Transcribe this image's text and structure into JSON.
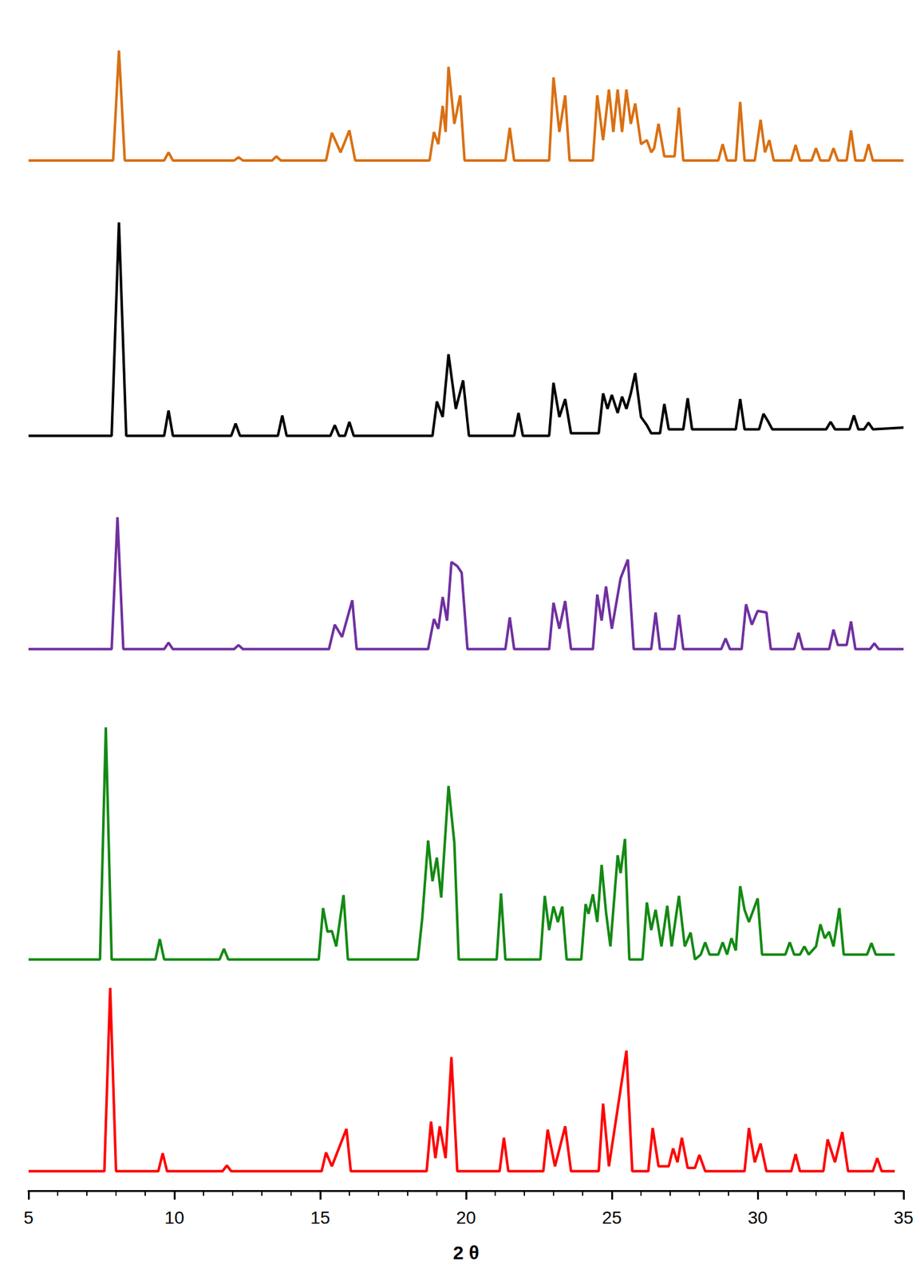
{
  "chart_data": {
    "type": "line",
    "xlabel": "2 θ",
    "xlim": [
      5,
      35
    ],
    "xticks": [
      5,
      10,
      15,
      20,
      25,
      30,
      35
    ],
    "ylim": [
      0,
      1420
    ],
    "tick_labels": "x",
    "grid": false,
    "series": [
      {
        "color": "#d97012",
        "x": [
          5,
          7.9,
          8.1,
          8.3,
          9.65,
          9.8,
          9.95,
          12.05,
          12.2,
          12.35,
          13.35,
          13.5,
          13.65,
          15.2,
          15.4,
          15.7,
          16.0,
          16.2,
          18.75,
          18.9,
          19.05,
          19.2,
          19.3,
          19.4,
          19.6,
          19.8,
          19.95,
          21.35,
          21.5,
          21.65,
          22.85,
          23.0,
          23.2,
          23.4,
          23.55,
          24.35,
          24.5,
          24.7,
          24.9,
          25.05,
          25.2,
          25.35,
          25.5,
          25.65,
          25.8,
          26.0,
          26.2,
          26.35,
          26.45,
          26.6,
          26.8,
          27.15,
          27.3,
          27.45,
          28.65,
          28.8,
          28.95,
          29.25,
          29.4,
          29.55,
          29.9,
          30.1,
          30.25,
          30.4,
          30.55,
          31.15,
          31.3,
          31.45,
          31.85,
          32.0,
          32.15,
          32.45,
          32.6,
          32.75,
          33.05,
          33.2,
          33.35,
          33.65,
          33.8,
          33.95,
          35
        ],
        "values": [
          1265,
          1265,
          1400,
          1265,
          1265,
          1275,
          1265,
          1265,
          1269,
          1265,
          1265,
          1270,
          1265,
          1265,
          1299,
          1275,
          1302,
          1265,
          1265,
          1300,
          1285,
          1332,
          1300,
          1380,
          1310,
          1345,
          1265,
          1265,
          1305,
          1265,
          1265,
          1367,
          1300,
          1345,
          1265,
          1265,
          1345,
          1290,
          1352,
          1300,
          1352,
          1300,
          1352,
          1310,
          1335,
          1285,
          1290,
          1275,
          1280,
          1310,
          1270,
          1270,
          1330,
          1265,
          1265,
          1285,
          1265,
          1265,
          1337,
          1265,
          1265,
          1315,
          1275,
          1290,
          1265,
          1265,
          1284,
          1265,
          1265,
          1280,
          1265,
          1265,
          1280,
          1265,
          1265,
          1302,
          1265,
          1265,
          1285,
          1265,
          1265
        ]
      },
      {
        "color": "#000000",
        "x": [
          5,
          7.85,
          8.1,
          8.35,
          9.65,
          9.8,
          9.95,
          11.95,
          12.1,
          12.25,
          13.55,
          13.7,
          13.85,
          15.35,
          15.5,
          15.65,
          15.85,
          16.0,
          16.15,
          18.85,
          19.0,
          19.2,
          19.4,
          19.65,
          19.9,
          20.1,
          21.65,
          21.8,
          21.95,
          22.85,
          23.0,
          23.2,
          23.4,
          23.6,
          24.55,
          24.7,
          24.85,
          25.0,
          25.2,
          25.35,
          25.5,
          25.65,
          25.8,
          26.0,
          26.2,
          26.35,
          26.65,
          26.8,
          26.95,
          27.45,
          27.6,
          27.75,
          29.25,
          29.4,
          29.55,
          30.05,
          30.2,
          30.35,
          30.5,
          32.35,
          32.5,
          32.65,
          33.15,
          33.3,
          33.45,
          33.65,
          33.8,
          33.95,
          35
        ],
        "values": [
          927,
          927,
          1189,
          927,
          927,
          958,
          927,
          927,
          942,
          927,
          927,
          952,
          927,
          927,
          940,
          927,
          927,
          944,
          927,
          927,
          969,
          950,
          1027,
          960,
          995,
          927,
          927,
          955,
          927,
          927,
          992,
          950,
          972,
          930,
          930,
          979,
          960,
          977,
          955,
          975,
          960,
          979,
          1004,
          950,
          940,
          930,
          930,
          966,
          935,
          935,
          973,
          935,
          935,
          972,
          935,
          935,
          954,
          945,
          935,
          935,
          944,
          935,
          935,
          952,
          935,
          935,
          943,
          935,
          937
        ]
      },
      {
        "color": "#7030a0",
        "x": [
          5,
          7.85,
          8.05,
          8.25,
          9.65,
          9.8,
          9.95,
          12.05,
          12.2,
          12.35,
          15.3,
          15.5,
          15.75,
          16.1,
          16.25,
          18.7,
          18.9,
          19.05,
          19.2,
          19.35,
          19.5,
          19.7,
          19.85,
          20.05,
          21.35,
          21.5,
          21.65,
          22.85,
          23.0,
          23.2,
          23.4,
          23.6,
          24.35,
          24.5,
          24.65,
          24.8,
          25.0,
          25.3,
          25.55,
          25.75,
          26.35,
          26.5,
          26.65,
          27.15,
          27.3,
          27.45,
          28.75,
          28.9,
          29.05,
          29.45,
          29.6,
          29.8,
          30.0,
          30.3,
          30.45,
          31.25,
          31.4,
          31.55,
          32.45,
          32.6,
          32.75,
          33.05,
          33.2,
          33.35,
          33.85,
          34.0,
          34.15,
          35
        ],
        "values": [
          665,
          665,
          827,
          665,
          665,
          673,
          665,
          665,
          670,
          665,
          665,
          695,
          680,
          725,
          665,
          665,
          702,
          690,
          729,
          700,
          772,
          767,
          759,
          665,
          665,
          704,
          665,
          665,
          722,
          690,
          724,
          665,
          665,
          732,
          700,
          742,
          690,
          752,
          775,
          665,
          665,
          710,
          665,
          665,
          707,
          665,
          665,
          678,
          665,
          665,
          720,
          695,
          712,
          710,
          665,
          665,
          685,
          665,
          665,
          689,
          670,
          670,
          699,
          665,
          665,
          672,
          665,
          665
        ]
      },
      {
        "color": "#138a13",
        "x": [
          5,
          7.45,
          7.65,
          7.85,
          9.35,
          9.5,
          9.65,
          11.55,
          11.7,
          11.85,
          14.95,
          15.1,
          15.25,
          15.4,
          15.55,
          15.8,
          15.95,
          18.35,
          18.5,
          18.7,
          18.85,
          19.0,
          19.15,
          19.4,
          19.6,
          19.75,
          21.05,
          21.2,
          21.35,
          22.55,
          22.7,
          22.85,
          23.0,
          23.15,
          23.3,
          23.45,
          23.95,
          24.1,
          24.2,
          24.35,
          24.5,
          24.65,
          24.8,
          24.95,
          25.2,
          25.3,
          25.45,
          25.6,
          26.05,
          26.2,
          26.35,
          26.5,
          26.7,
          26.9,
          27.05,
          27.3,
          27.5,
          27.7,
          27.85,
          28.05,
          28.2,
          28.35,
          28.65,
          28.8,
          28.95,
          29.1,
          29.25,
          29.4,
          29.55,
          29.7,
          30.0,
          30.15,
          30.95,
          31.1,
          31.25,
          31.45,
          31.6,
          31.75,
          32.0,
          32.15,
          32.3,
          32.45,
          32.6,
          32.8,
          32.95,
          33.75,
          33.9,
          34.05,
          34.7
        ],
        "values": [
          284,
          284,
          569,
          284,
          284,
          309,
          284,
          284,
          297,
          284,
          284,
          347,
          318,
          319,
          300,
          363,
          284,
          284,
          335,
          430,
          380,
          409,
          360,
          497,
          427,
          284,
          284,
          365,
          284,
          284,
          362,
          320,
          349,
          330,
          349,
          284,
          284,
          352,
          340,
          364,
          330,
          400,
          342,
          300,
          412,
          390,
          432,
          284,
          284,
          354,
          320,
          345,
          300,
          350,
          300,
          362,
          300,
          317,
          284,
          290,
          305,
          290,
          290,
          305,
          290,
          310,
          295,
          374,
          345,
          330,
          359,
          290,
          290,
          305,
          290,
          290,
          300,
          290,
          300,
          327,
          310,
          318,
          300,
          347,
          290,
          290,
          304,
          290,
          290
        ]
      },
      {
        "color": "#ff0000",
        "x": [
          5,
          7.6,
          7.8,
          8.0,
          9.45,
          9.6,
          9.75,
          11.65,
          11.8,
          11.95,
          15.05,
          15.2,
          15.4,
          15.9,
          16.05,
          18.65,
          18.8,
          18.95,
          19.1,
          19.3,
          19.5,
          19.7,
          21.15,
          21.3,
          21.45,
          22.65,
          22.8,
          23.05,
          23.4,
          23.6,
          24.55,
          24.7,
          24.9,
          25.5,
          25.7,
          26.25,
          26.4,
          26.6,
          26.95,
          27.1,
          27.25,
          27.4,
          27.6,
          27.85,
          28.0,
          28.2,
          29.55,
          29.7,
          29.9,
          30.1,
          30.3,
          31.15,
          31.3,
          31.45,
          32.25,
          32.4,
          32.65,
          32.9,
          33.1,
          33.95,
          34.1,
          34.25,
          34.7
        ],
        "values": [
          24,
          24,
          249,
          24,
          24,
          46,
          24,
          24,
          31,
          24,
          24,
          47,
          30,
          76,
          24,
          24,
          85,
          40,
          79,
          40,
          164,
          24,
          24,
          65,
          24,
          24,
          75,
          30,
          79,
          24,
          24,
          107,
          30,
          172,
          24,
          24,
          77,
          30,
          30,
          52,
          35,
          65,
          28,
          28,
          44,
          24,
          24,
          77,
          35,
          58,
          24,
          24,
          45,
          24,
          24,
          63,
          35,
          72,
          24,
          24,
          40,
          24,
          24
        ]
      }
    ]
  }
}
